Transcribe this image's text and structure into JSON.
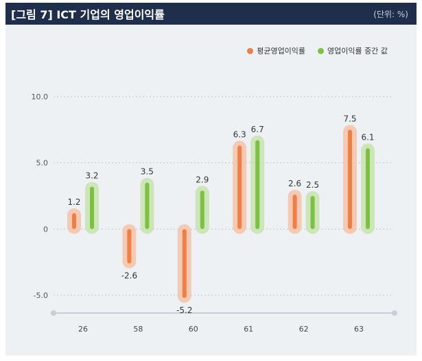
{
  "header": {
    "title": "[그림 7]  ICT 기업의 영업이익률",
    "unit": "(단위: %)"
  },
  "colors": {
    "header_bg": "#1f2e4a",
    "series1": "#f07e45",
    "series1_glow": "#f6c3a8",
    "series2": "#7cc242",
    "series2_glow": "#c7e3ad"
  },
  "chart_data": {
    "type": "bar",
    "categories": [
      "26",
      "58",
      "60",
      "61",
      "62",
      "63"
    ],
    "series": [
      {
        "name": "평균영업이익률",
        "values": [
          1.2,
          -2.6,
          -5.2,
          6.3,
          2.6,
          7.5
        ]
      },
      {
        "name": "영업이익률 중간 값",
        "values": [
          3.2,
          3.5,
          2.9,
          6.7,
          2.5,
          6.1
        ]
      }
    ],
    "yticks": [
      "10.0",
      "5.0",
      "0",
      "-5.0"
    ],
    "ylim": [
      -5.0,
      10.0
    ],
    "grid": true,
    "legend_position": "top-right"
  }
}
